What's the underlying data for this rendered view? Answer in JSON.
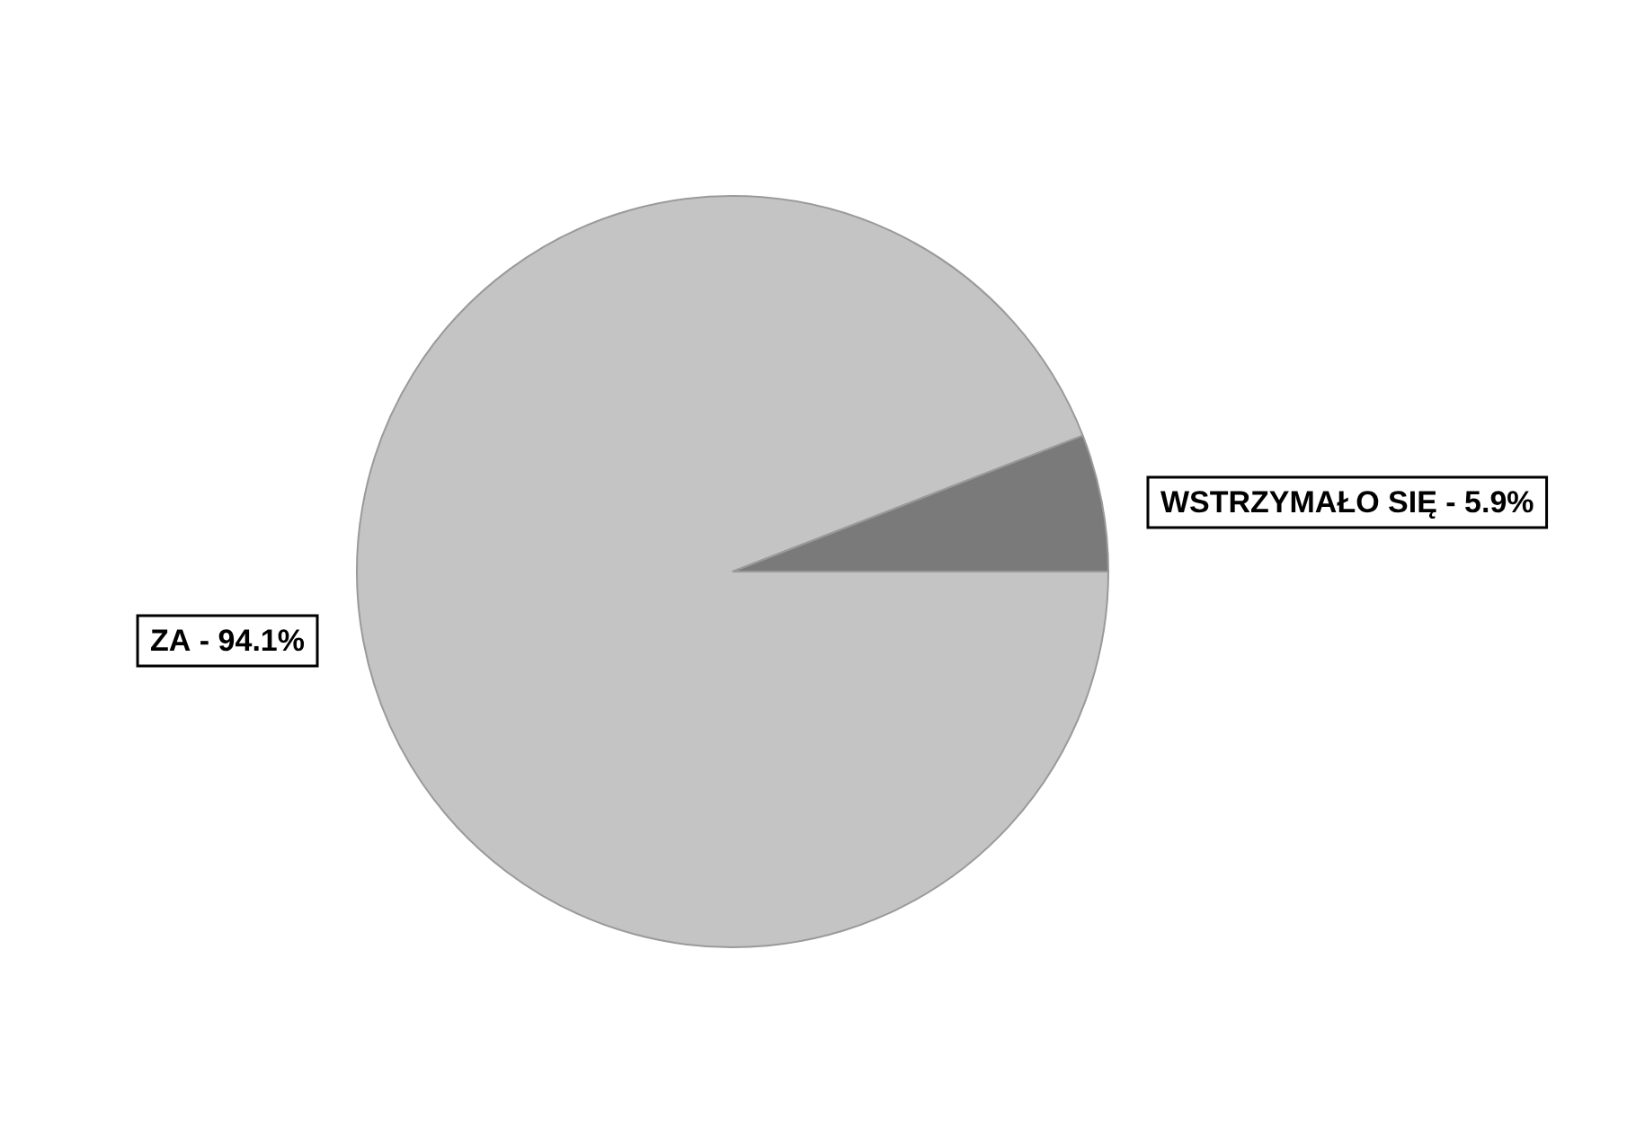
{
  "chart_data": {
    "type": "pie",
    "categories": [
      "ZA",
      "WSTRZYMAŁO SIĘ"
    ],
    "values": [
      94.1,
      5.9
    ],
    "colors": [
      "#c4c4c4",
      "#7a7a7a"
    ],
    "value_labels": [
      "94.1%",
      "5.9%"
    ],
    "annotations": [
      "-",
      "-"
    ]
  }
}
